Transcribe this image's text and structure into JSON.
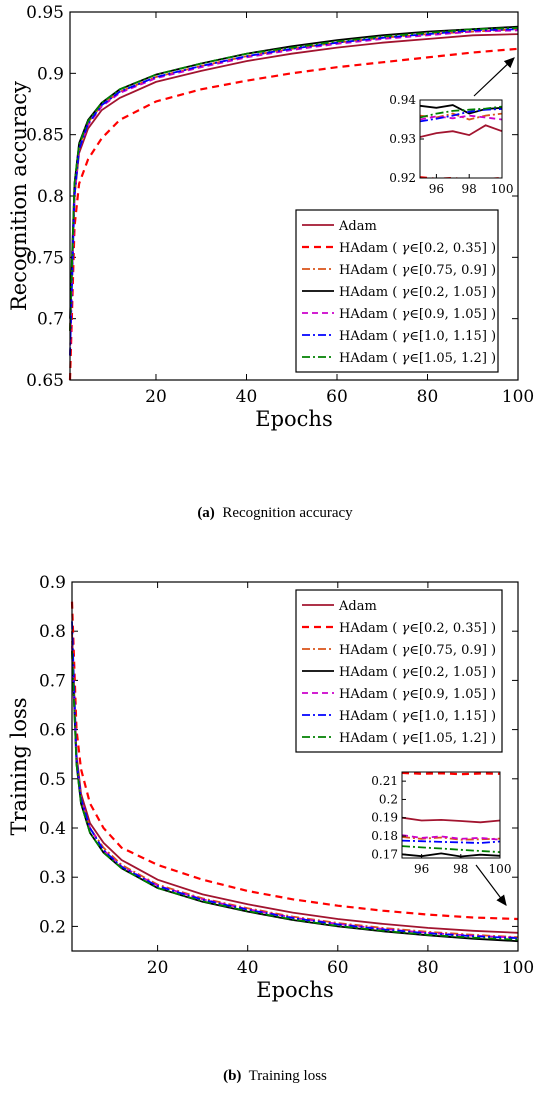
{
  "chart_data": [
    {
      "type": "line",
      "ylabel": "Recognition accuracy",
      "xlabel": "Epochs",
      "xlim": [
        1,
        100
      ],
      "ylim": [
        0.65,
        0.95
      ],
      "xticks": [
        "20",
        "40",
        "60",
        "80",
        "100"
      ],
      "yticks": [
        "0.65",
        "0.7",
        "0.75",
        "0.8",
        "0.85",
        "0.9",
        "0.95"
      ],
      "legend_position": "bottom-right",
      "legend": [
        {
          "prefix": "Adam",
          "gamma": ""
        },
        {
          "prefix": "HAdam ( ",
          "gamma": "[0.2, 0.35] )"
        },
        {
          "prefix": "HAdam ( ",
          "gamma": "[0.75, 0.9] )"
        },
        {
          "prefix": "HAdam ( ",
          "gamma": "[0.2, 1.05] )"
        },
        {
          "prefix": "HAdam ( ",
          "gamma": "[0.9, 1.05] )"
        },
        {
          "prefix": "HAdam ( ",
          "gamma": "[1.0, 1.15] )"
        },
        {
          "prefix": "HAdam ( ",
          "gamma": "[1.05, 1.2] )"
        }
      ],
      "series": [
        {
          "name": "Adam",
          "x": [
            1,
            2,
            3,
            5,
            8,
            12,
            20,
            30,
            40,
            50,
            60,
            70,
            80,
            90,
            100
          ],
          "values": [
            0.69,
            0.8,
            0.835,
            0.855,
            0.87,
            0.88,
            0.893,
            0.902,
            0.91,
            0.916,
            0.921,
            0.925,
            0.928,
            0.931,
            0.932
          ]
        },
        {
          "name": "HAdam ( γ∈[0.2, 0.35] )",
          "x": [
            1,
            2,
            3,
            5,
            8,
            12,
            20,
            30,
            40,
            50,
            60,
            70,
            80,
            90,
            100
          ],
          "values": [
            0.65,
            0.775,
            0.81,
            0.83,
            0.847,
            0.862,
            0.877,
            0.887,
            0.894,
            0.9,
            0.905,
            0.909,
            0.913,
            0.917,
            0.92
          ]
        },
        {
          "name": "HAdam ( γ∈[0.75, 0.9] )",
          "x": [
            1,
            2,
            3,
            5,
            8,
            12,
            20,
            30,
            40,
            50,
            60,
            70,
            80,
            90,
            100
          ],
          "values": [
            0.69,
            0.8,
            0.84,
            0.86,
            0.874,
            0.885,
            0.897,
            0.906,
            0.914,
            0.92,
            0.925,
            0.929,
            0.932,
            0.934,
            0.936
          ]
        },
        {
          "name": "HAdam ( γ∈[0.2, 1.05] )",
          "x": [
            1,
            2,
            3,
            5,
            8,
            12,
            20,
            30,
            40,
            50,
            60,
            70,
            80,
            90,
            100
          ],
          "values": [
            0.7,
            0.81,
            0.843,
            0.862,
            0.876,
            0.887,
            0.899,
            0.908,
            0.916,
            0.922,
            0.927,
            0.931,
            0.934,
            0.936,
            0.938
          ]
        },
        {
          "name": "HAdam ( γ∈[0.9, 1.05] )",
          "x": [
            1,
            2,
            3,
            5,
            8,
            12,
            20,
            30,
            40,
            50,
            60,
            70,
            80,
            90,
            100
          ],
          "values": [
            0.67,
            0.8,
            0.838,
            0.858,
            0.873,
            0.884,
            0.896,
            0.905,
            0.913,
            0.919,
            0.924,
            0.928,
            0.931,
            0.934,
            0.935
          ]
        },
        {
          "name": "HAdam ( γ∈[1.0, 1.15] )",
          "x": [
            1,
            2,
            3,
            5,
            8,
            12,
            20,
            30,
            40,
            50,
            60,
            70,
            80,
            90,
            100
          ],
          "values": [
            0.67,
            0.8,
            0.838,
            0.859,
            0.874,
            0.885,
            0.897,
            0.906,
            0.914,
            0.92,
            0.925,
            0.929,
            0.932,
            0.935,
            0.936
          ]
        },
        {
          "name": "HAdam ( γ∈[1.05, 1.2] )",
          "x": [
            1,
            2,
            3,
            5,
            8,
            12,
            20,
            30,
            40,
            50,
            60,
            70,
            80,
            90,
            100
          ],
          "values": [
            0.69,
            0.81,
            0.842,
            0.861,
            0.876,
            0.887,
            0.899,
            0.908,
            0.916,
            0.921,
            0.926,
            0.93,
            0.933,
            0.936,
            0.937
          ]
        }
      ],
      "inset": {
        "xlim": [
          95,
          100
        ],
        "ylim": [
          0.92,
          0.94
        ],
        "xticks": [
          "96",
          "98",
          "100"
        ],
        "yticks": [
          "0.92",
          "0.93",
          "0.94"
        ],
        "x": [
          95,
          96,
          97,
          98,
          99,
          100
        ],
        "series": [
          [
            0.9305,
            0.9315,
            0.932,
            0.931,
            0.9335,
            0.932
          ],
          [
            0.9202,
            0.9198,
            0.92,
            0.9195,
            0.9197,
            0.92
          ],
          [
            0.936,
            0.9355,
            0.9365,
            0.935,
            0.936,
            0.9365
          ],
          [
            0.9385,
            0.938,
            0.9387,
            0.9365,
            0.9377,
            0.938
          ],
          [
            0.935,
            0.9358,
            0.9353,
            0.936,
            0.9355,
            0.935
          ],
          [
            0.9345,
            0.9352,
            0.936,
            0.937,
            0.9375,
            0.9377
          ],
          [
            0.9355,
            0.9365,
            0.9372,
            0.9375,
            0.9378,
            0.9383
          ]
        ]
      }
    },
    {
      "type": "line",
      "ylabel": "Training loss",
      "xlabel": "Epochs",
      "xlim": [
        1,
        100
      ],
      "ylim": [
        0.15,
        0.9
      ],
      "xticks": [
        "20",
        "40",
        "60",
        "80",
        "100"
      ],
      "yticks": [
        "0.2",
        "0.3",
        "0.4",
        "0.5",
        "0.6",
        "0.7",
        "0.8",
        "0.9"
      ],
      "legend_position": "top-right",
      "legend": [
        {
          "prefix": "Adam",
          "gamma": ""
        },
        {
          "prefix": "HAdam ( ",
          "gamma": "[0.2, 0.35] )"
        },
        {
          "prefix": "HAdam ( ",
          "gamma": "[0.75, 0.9] )"
        },
        {
          "prefix": "HAdam ( ",
          "gamma": "[0.2, 1.05] )"
        },
        {
          "prefix": "HAdam ( ",
          "gamma": "[0.9, 1.05] )"
        },
        {
          "prefix": "HAdam ( ",
          "gamma": "[1.0, 1.15] )"
        },
        {
          "prefix": "HAdam ( ",
          "gamma": "[1.05, 1.2] )"
        }
      ],
      "series": [
        {
          "name": "Adam",
          "x": [
            1,
            2,
            3,
            5,
            8,
            12,
            20,
            30,
            40,
            50,
            60,
            70,
            80,
            90,
            100
          ],
          "values": [
            0.8,
            0.55,
            0.47,
            0.41,
            0.37,
            0.335,
            0.295,
            0.265,
            0.245,
            0.228,
            0.215,
            0.205,
            0.197,
            0.191,
            0.187
          ]
        },
        {
          "name": "HAdam ( γ∈[0.2, 0.35] )",
          "x": [
            1,
            2,
            3,
            5,
            8,
            12,
            20,
            30,
            40,
            50,
            60,
            70,
            80,
            90,
            100
          ],
          "values": [
            0.86,
            0.6,
            0.52,
            0.45,
            0.4,
            0.36,
            0.325,
            0.295,
            0.272,
            0.255,
            0.242,
            0.232,
            0.224,
            0.218,
            0.215
          ]
        },
        {
          "name": "HAdam ( γ∈[0.75, 0.9] )",
          "x": [
            1,
            2,
            3,
            5,
            8,
            12,
            20,
            30,
            40,
            50,
            60,
            70,
            80,
            90,
            100
          ],
          "values": [
            0.78,
            0.54,
            0.46,
            0.4,
            0.36,
            0.325,
            0.285,
            0.257,
            0.237,
            0.22,
            0.207,
            0.197,
            0.189,
            0.183,
            0.178
          ]
        },
        {
          "name": "HAdam ( γ∈[0.2, 1.05] )",
          "x": [
            1,
            2,
            3,
            5,
            8,
            12,
            20,
            30,
            40,
            50,
            60,
            70,
            80,
            90,
            100
          ],
          "values": [
            0.76,
            0.53,
            0.45,
            0.39,
            0.35,
            0.318,
            0.278,
            0.25,
            0.23,
            0.213,
            0.2,
            0.19,
            0.182,
            0.175,
            0.17
          ]
        },
        {
          "name": "HAdam ( γ∈[0.9, 1.05] )",
          "x": [
            1,
            2,
            3,
            5,
            8,
            12,
            20,
            30,
            40,
            50,
            60,
            70,
            80,
            90,
            100
          ],
          "values": [
            0.77,
            0.54,
            0.46,
            0.4,
            0.355,
            0.322,
            0.283,
            0.255,
            0.235,
            0.218,
            0.205,
            0.195,
            0.187,
            0.181,
            0.177
          ]
        },
        {
          "name": "HAdam ( γ∈[1.0, 1.15] )",
          "x": [
            1,
            2,
            3,
            5,
            8,
            12,
            20,
            30,
            40,
            50,
            60,
            70,
            80,
            90,
            100
          ],
          "values": [
            0.82,
            0.54,
            0.46,
            0.4,
            0.355,
            0.321,
            0.282,
            0.254,
            0.234,
            0.217,
            0.204,
            0.194,
            0.186,
            0.18,
            0.176
          ]
        },
        {
          "name": "HAdam ( γ∈[1.05, 1.2] )",
          "x": [
            1,
            2,
            3,
            5,
            8,
            12,
            20,
            30,
            40,
            50,
            60,
            70,
            80,
            90,
            100
          ],
          "values": [
            0.76,
            0.53,
            0.45,
            0.39,
            0.35,
            0.318,
            0.278,
            0.251,
            0.231,
            0.214,
            0.201,
            0.191,
            0.183,
            0.177,
            0.173
          ]
        }
      ],
      "inset": {
        "xlim": [
          95,
          100
        ],
        "ylim": [
          0.168,
          0.215
        ],
        "xticks": [
          "96",
          "98",
          "100"
        ],
        "yticks": [
          "0.17",
          "0.18",
          "0.19",
          "0.2",
          "0.21"
        ],
        "x": [
          95,
          96,
          97,
          98,
          99,
          100
        ],
        "series": [
          [
            0.19,
            0.1885,
            0.1888,
            0.1882,
            0.1875,
            0.1885
          ],
          [
            0.2145,
            0.214,
            0.2143,
            0.2138,
            0.2142,
            0.214
          ],
          [
            0.1795,
            0.1785,
            0.1792,
            0.178,
            0.1782,
            0.1786
          ],
          [
            0.17,
            0.169,
            0.1705,
            0.1688,
            0.1698,
            0.1692
          ],
          [
            0.1805,
            0.179,
            0.1798,
            0.1785,
            0.179,
            0.178
          ],
          [
            0.1775,
            0.1772,
            0.1768,
            0.1765,
            0.1762,
            0.177
          ],
          [
            0.1745,
            0.1738,
            0.1732,
            0.1725,
            0.1718,
            0.1712
          ]
        ]
      }
    }
  ],
  "styles": [
    {
      "color": "#a2142f",
      "dash": ""
    },
    {
      "color": "#ff0000",
      "dash": "7,5"
    },
    {
      "color": "#d95319",
      "dash": "8,3,2,3"
    },
    {
      "color": "#000000",
      "dash": ""
    },
    {
      "color": "#cc00cc",
      "dash": "6,4"
    },
    {
      "color": "#0000ff",
      "dash": "8,3,2,3"
    },
    {
      "color": "#008000",
      "dash": "8,3,2,3"
    }
  ],
  "captions": [
    {
      "label": "(a)",
      "text": "Recognition accuracy"
    },
    {
      "label": "(b)",
      "text": "Training loss"
    }
  ],
  "gamma_symbol": "γ∈"
}
